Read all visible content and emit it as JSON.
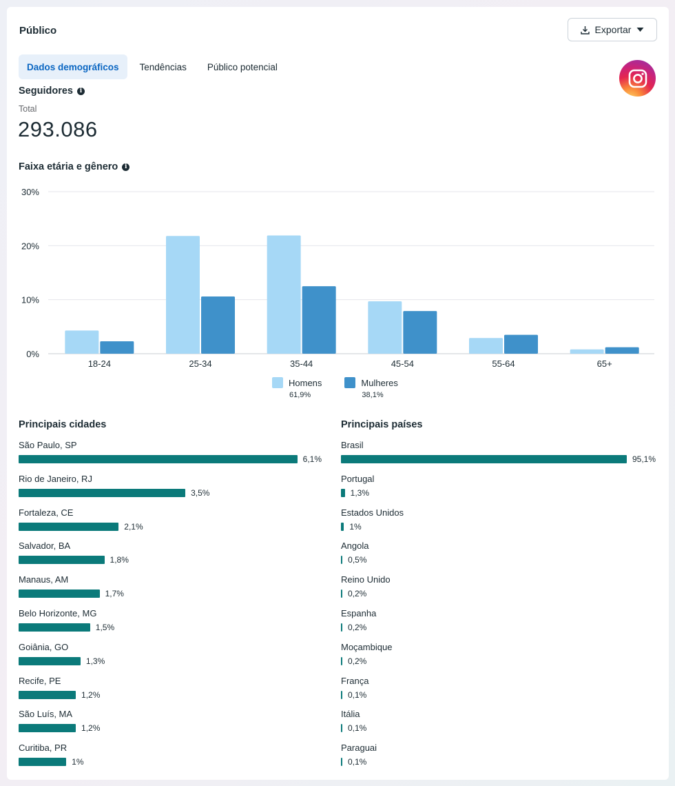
{
  "header": {
    "title": "Público",
    "export_label": "Exportar"
  },
  "tabs": [
    {
      "label": "Dados demográficos",
      "active": true
    },
    {
      "label": "Tendências",
      "active": false
    },
    {
      "label": "Público potencial",
      "active": false
    }
  ],
  "followers": {
    "heading": "Seguidores",
    "total_label": "Total",
    "total_value": "293.086"
  },
  "age_gender": {
    "heading": "Faixa etária e gênero"
  },
  "chart_data": {
    "type": "bar",
    "title": "Faixa etária e gênero",
    "categories": [
      "18-24",
      "25-34",
      "35-44",
      "45-54",
      "55-64",
      "65+"
    ],
    "series": [
      {
        "name": "Homens",
        "share": "61,9%",
        "color": "#a6d8f6",
        "values": [
          4.3,
          21.8,
          21.9,
          9.7,
          2.9,
          0.8
        ]
      },
      {
        "name": "Mulheres",
        "share": "38,1%",
        "color": "#3f91ca",
        "values": [
          2.3,
          10.6,
          12.5,
          7.9,
          3.5,
          1.2
        ]
      }
    ],
    "y_ticks": [
      "0%",
      "10%",
      "20%",
      "30%"
    ],
    "ylim": [
      0,
      30
    ],
    "grid": true,
    "legend_position": "bottom-center"
  },
  "cities": {
    "heading": "Principais cidades",
    "bar_color": "#0b7a7a",
    "items": [
      {
        "name": "São Paulo, SP",
        "value": 6.1,
        "label": "6,1%"
      },
      {
        "name": "Rio de Janeiro, RJ",
        "value": 3.5,
        "label": "3,5%"
      },
      {
        "name": "Fortaleza, CE",
        "value": 2.1,
        "label": "2,1%"
      },
      {
        "name": "Salvador, BA",
        "value": 1.8,
        "label": "1,8%"
      },
      {
        "name": "Manaus, AM",
        "value": 1.7,
        "label": "1,7%"
      },
      {
        "name": "Belo Horizonte, MG",
        "value": 1.5,
        "label": "1,5%"
      },
      {
        "name": "Goiânia, GO",
        "value": 1.3,
        "label": "1,3%"
      },
      {
        "name": "Recife, PE",
        "value": 1.2,
        "label": "1,2%"
      },
      {
        "name": "São Luís, MA",
        "value": 1.2,
        "label": "1,2%"
      },
      {
        "name": "Curitiba, PR",
        "value": 1.0,
        "label": "1%"
      }
    ]
  },
  "countries": {
    "heading": "Principais países",
    "items": [
      {
        "name": "Brasil",
        "value": 95.1,
        "label": "95,1%"
      },
      {
        "name": "Portugal",
        "value": 1.3,
        "label": "1,3%"
      },
      {
        "name": "Estados Unidos",
        "value": 1.0,
        "label": "1%"
      },
      {
        "name": "Angola",
        "value": 0.5,
        "label": "0,5%"
      },
      {
        "name": "Reino Unido",
        "value": 0.2,
        "label": "0,2%"
      },
      {
        "name": "Espanha",
        "value": 0.2,
        "label": "0,2%"
      },
      {
        "name": "Moçambique",
        "value": 0.2,
        "label": "0,2%"
      },
      {
        "name": "França",
        "value": 0.1,
        "label": "0,1%"
      },
      {
        "name": "Itália",
        "value": 0.1,
        "label": "0,1%"
      },
      {
        "name": "Paraguai",
        "value": 0.1,
        "label": "0,1%"
      }
    ]
  }
}
